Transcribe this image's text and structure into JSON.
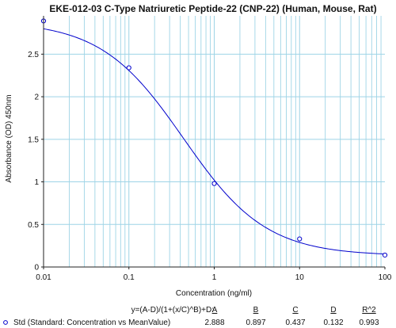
{
  "chart_data": {
    "type": "scatter",
    "title": "EKE-012-03 C-Type Natriuretic Peptide-22 (CNP-22) (Human, Mouse, Rat)",
    "xlabel": "Concentration (ng/ml)",
    "ylabel": "Absorbance (OD) 450nm",
    "x_scale": "log",
    "xlim": [
      0.01,
      100
    ],
    "ylim": [
      0,
      2.95
    ],
    "x_ticks": [
      "0.01",
      "0.1",
      "1",
      "10",
      "100"
    ],
    "y_ticks": [
      "0",
      "0.5",
      "1",
      "1.5",
      "2",
      "2.5"
    ],
    "grid": true,
    "series": [
      {
        "name": "Std (Standard: Concentration vs MeanValue)",
        "x": [
          0.01,
          0.1,
          1,
          10,
          100
        ],
        "y": [
          2.89,
          2.34,
          0.98,
          0.33,
          0.14
        ],
        "fit": "4PL"
      }
    ],
    "fit_table": {
      "equation": "y=(A-D)/(1+(x/C)^B)+D:",
      "headers": [
        "A",
        "B",
        "C",
        "D",
        "R^2"
      ],
      "values": [
        "2.888",
        "0.897",
        "0.437",
        "0.132",
        "0.993"
      ],
      "params": {
        "A": 2.888,
        "B": 0.897,
        "C": 0.437,
        "D": 0.132
      }
    },
    "colors": {
      "curve": "#0000cc",
      "grid": "#9ed4e6",
      "axis": "#222222"
    }
  }
}
